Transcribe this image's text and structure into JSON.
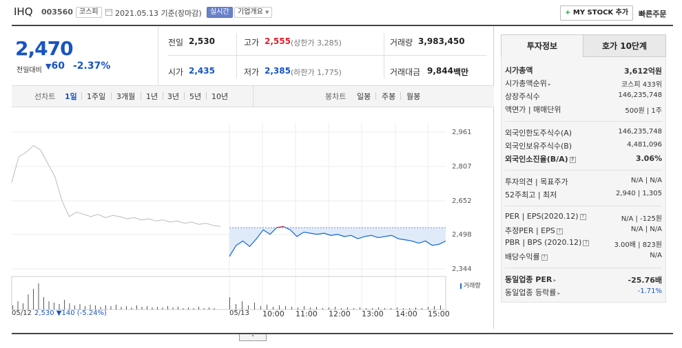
{
  "header": {
    "name": "IHQ",
    "code": "003560",
    "market": "코스피",
    "date_text": "2021.05.13 기준(장마감)",
    "realtime": "실시간",
    "company_overview": "기업개요",
    "my_stock": "MY STOCK 추가",
    "quick_order": "빠른주문"
  },
  "price": {
    "current": "2,470",
    "change_label": "전일대비",
    "change": "60",
    "change_pct": "-2.37%"
  },
  "stats": {
    "prev_label": "전일",
    "prev": "2,530",
    "high_label": "고가",
    "high": "2,555",
    "upper_limit": "(상한가 3,285)",
    "volume_label": "거래량",
    "volume": "3,983,450",
    "open_label": "시가",
    "open": "2,435",
    "low_label": "저가",
    "low": "2,385",
    "lower_limit": "(하한가 1,775)",
    "amount_label": "거래대금",
    "amount": "9,844",
    "amount_unit": "백만"
  },
  "periods": {
    "line_label": "선차트",
    "items": [
      "1일",
      "1주일",
      "3개월",
      "1년",
      "3년",
      "5년",
      "10년"
    ],
    "active": "1일",
    "candle_label": "봉차트",
    "candle_items": [
      "일봉",
      "주봉",
      "월봉"
    ]
  },
  "chart_data": {
    "type": "line",
    "y_ticks": [
      "2,961",
      "2,807",
      "2,652",
      "2,498",
      "2,344"
    ],
    "y_range": [
      2344,
      2961
    ],
    "x_ticks": [
      "05/13",
      "10:00",
      "11:00",
      "12:00",
      "13:00",
      "14:00",
      "15:00"
    ],
    "prev_day_label": "05/12",
    "prev_day_summary": "2,530 ▼140 (-5.24%)",
    "volume_label": "거래량",
    "reference_price": 2530,
    "prev_day_series": [
      2735,
      2850,
      2870,
      2900,
      2880,
      2820,
      2760,
      2650,
      2580,
      2600,
      2590,
      2580,
      2590,
      2575,
      2585,
      2580,
      2570,
      2575,
      2565,
      2570,
      2560,
      2565,
      2555,
      2560,
      2550,
      2555,
      2545,
      2550,
      2540,
      2535
    ],
    "today_series": [
      2400,
      2450,
      2470,
      2445,
      2480,
      2520,
      2500,
      2530,
      2535,
      2520,
      2490,
      2510,
      2505,
      2500,
      2505,
      2495,
      2500,
      2490,
      2495,
      2480,
      2490,
      2495,
      2485,
      2490,
      2495,
      2480,
      2475,
      2470,
      2460,
      2470,
      2450,
      2455,
      2470
    ]
  },
  "right_panel": {
    "tab_invest": "투자정보",
    "tab_orderbook": "호가 10단계",
    "rows": [
      {
        "label": "시가총액",
        "value": "3,612억원",
        "bold": true
      },
      {
        "label": "시가총액순위",
        "value": "코스피 433위"
      },
      {
        "label": "상장주식수",
        "value": "146,235,748"
      },
      {
        "label": "액면가 | 매매단위",
        "value": "500원 | 1주"
      },
      {
        "label": "외국인한도주식수(A)",
        "value": "146,235,748"
      },
      {
        "label": "외국인보유주식수(B)",
        "value": "4,481,096"
      },
      {
        "label": "외국인소진율(B/A)",
        "value": "3.06%",
        "bold": true
      },
      {
        "label": "투자의견 | 목표주가",
        "value": "N/A | N/A"
      },
      {
        "label": "52주최고 | 최저",
        "value": "2,940 | 1,305"
      },
      {
        "label": "PER | EPS(2020.12)",
        "value": "N/A | -125원"
      },
      {
        "label": "추정PER | EPS",
        "value": "N/A | N/A"
      },
      {
        "label": "PBR | BPS (2020.12)",
        "value": "3.00배 | 823원"
      },
      {
        "label": "배당수익률",
        "value": "N/A"
      },
      {
        "label": "동일업종 PER",
        "value": "-25.76배",
        "bold": true
      },
      {
        "label": "동일업종 등락률",
        "value": "-1.71%"
      }
    ]
  },
  "colors": {
    "up": "#e0202b",
    "down": "#1854c2",
    "line": "#1f6fd1",
    "prev_line": "#bbbbbb"
  }
}
